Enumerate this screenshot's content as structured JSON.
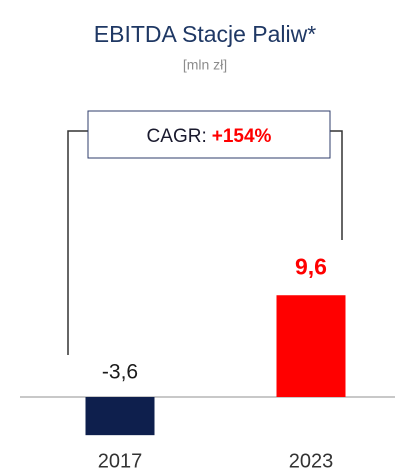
{
  "chart_data": {
    "type": "bar",
    "title": "EBITDA Stacje Paliw*",
    "subtitle": "[mln zł]",
    "categories": [
      "2017",
      "2023"
    ],
    "values": [
      -3.6,
      9.6
    ],
    "value_labels": [
      "-3,6",
      "9,6"
    ],
    "colors": [
      "#0e1f4d",
      "#ff0000"
    ],
    "annotation": {
      "label": "CAGR:",
      "value": "+154%"
    }
  }
}
